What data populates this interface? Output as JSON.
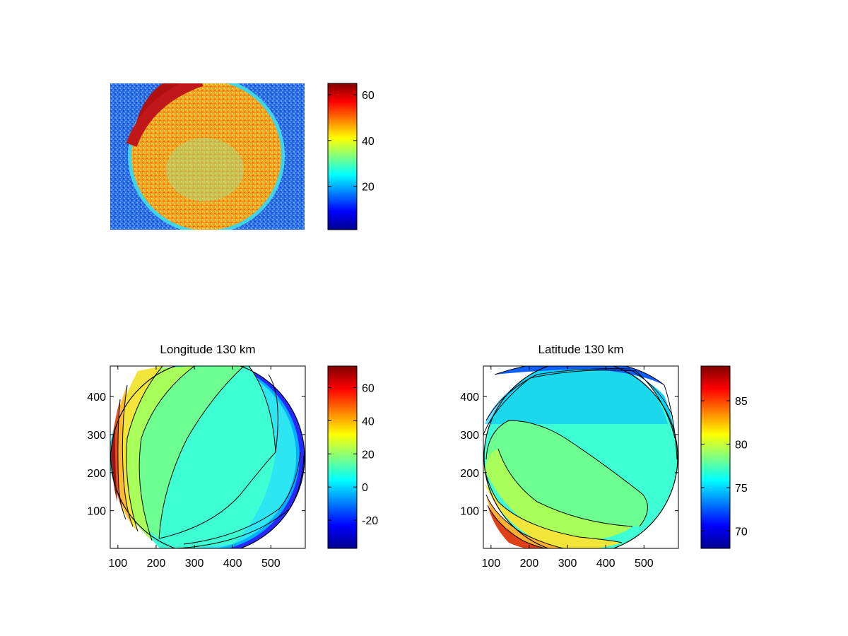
{
  "chart_data": [
    {
      "type": "heatmap",
      "title": "",
      "description_of_content": "",
      "colormap": "jet",
      "colorbar": {
        "range": [
          1,
          65
        ],
        "ticks": [
          20,
          40,
          60
        ]
      },
      "axes_visible": false
    },
    {
      "type": "heatmap",
      "title": "Longitude 130 km",
      "colormap": "jet",
      "contours": true,
      "xlim": [
        80,
        590
      ],
      "ylim": [
        1,
        480
      ],
      "x_ticks": [
        100,
        200,
        300,
        400,
        500
      ],
      "y_ticks": [
        100,
        200,
        300,
        400
      ],
      "colorbar": {
        "range": [
          -37,
          73
        ],
        "ticks": [
          -20,
          0,
          20,
          40,
          60
        ]
      },
      "contour_levels": [
        -30,
        -20,
        -10,
        0,
        10,
        20,
        30,
        40,
        50,
        60
      ]
    },
    {
      "type": "heatmap",
      "title": "Latitude 130 km",
      "colormap": "jet",
      "contours": true,
      "xlim": [
        80,
        590
      ],
      "ylim": [
        1,
        480
      ],
      "x_ticks": [
        100,
        200,
        300,
        400,
        500
      ],
      "y_ticks": [
        100,
        200,
        300,
        400
      ],
      "colorbar": {
        "range": [
          68,
          89
        ],
        "ticks": [
          70,
          75,
          80,
          85
        ]
      },
      "contour_levels": [
        70,
        71,
        72,
        73,
        74,
        75,
        76,
        77,
        78,
        79,
        80,
        81,
        82,
        83
      ]
    }
  ]
}
